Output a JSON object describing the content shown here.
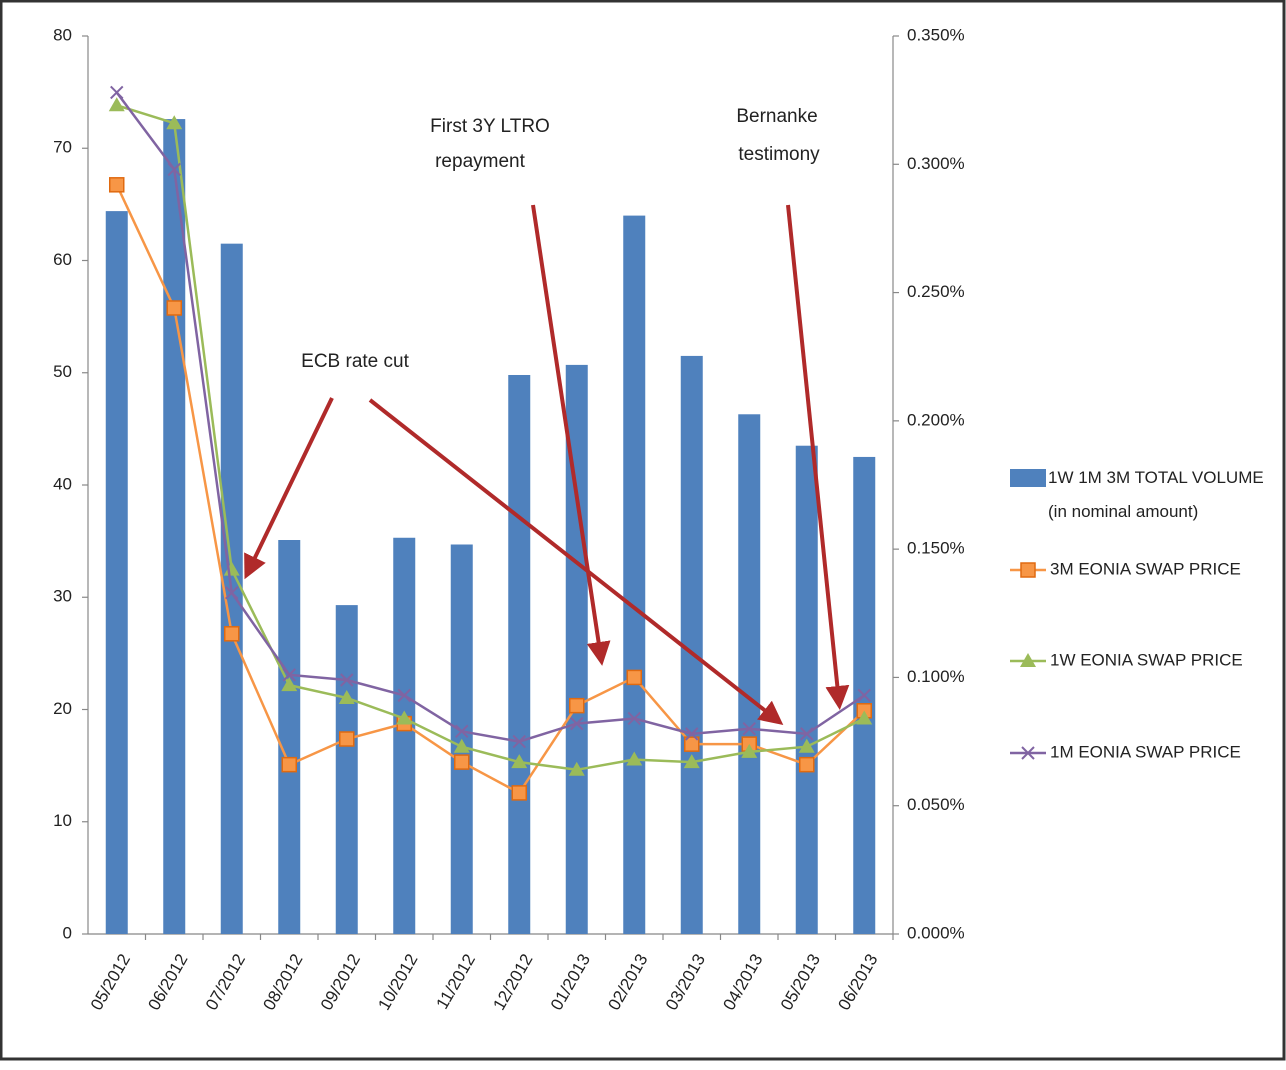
{
  "chart_data": {
    "type": "bar",
    "categories": [
      "05/2012",
      "06/2012",
      "07/2012",
      "08/2012",
      "09/2012",
      "10/2012",
      "11/2012",
      "12/2012",
      "01/2013",
      "02/2013",
      "03/2013",
      "04/2013",
      "05/2013",
      "06/2013"
    ],
    "series": [
      {
        "name": "1W 1M 3M TOTAL VOLUME (in nominal amount)",
        "type": "bar",
        "color": "#4f81bd",
        "values": [
          64.4,
          72.6,
          61.5,
          35.1,
          29.3,
          35.3,
          34.7,
          49.8,
          50.7,
          64.0,
          51.5,
          46.3,
          43.5,
          42.5
        ]
      },
      {
        "name": "3M EONIA SWAP PRICE",
        "type": "line",
        "axis": "y2",
        "marker": "square",
        "color": "#f79646",
        "values": [
          0.292,
          0.244,
          0.117,
          0.066,
          0.076,
          0.082,
          0.067,
          0.055,
          0.089,
          0.1,
          0.074,
          0.074,
          0.066,
          0.087
        ]
      },
      {
        "name": "1W EONIA SWAP PRICE",
        "type": "line",
        "axis": "y2",
        "marker": "triangle",
        "color": "#9bbb59",
        "values": [
          0.323,
          0.316,
          0.142,
          0.097,
          0.092,
          0.084,
          0.073,
          0.067,
          0.064,
          0.068,
          0.067,
          0.071,
          0.073,
          0.084
        ]
      },
      {
        "name": "1M EONIA SWAP PRICE",
        "type": "line",
        "axis": "y2",
        "marker": "cross",
        "color": "#8064a2",
        "values": [
          0.328,
          0.298,
          0.133,
          0.101,
          0.099,
          0.093,
          0.079,
          0.075,
          0.082,
          0.084,
          0.078,
          0.08,
          0.078,
          0.093
        ]
      }
    ],
    "ylim": [
      0,
      80
    ],
    "yticks": [
      0,
      10,
      20,
      30,
      40,
      50,
      60,
      70,
      80
    ],
    "y2lim": [
      0,
      0.35
    ],
    "y2ticks": [
      {
        "value": 0,
        "label": "0.000%"
      },
      {
        "value": 0.05,
        "label": "0.050%"
      },
      {
        "value": 0.1,
        "label": "0.100%"
      },
      {
        "value": 0.15,
        "label": "0.150%"
      },
      {
        "value": 0.2,
        "label": "0.200%"
      },
      {
        "value": 0.25,
        "label": "0.250%"
      },
      {
        "value": 0.3,
        "label": "0.300%"
      },
      {
        "value": 0.35,
        "label": "0.350%"
      }
    ],
    "annotations": [
      [
        "ECB rate cut"
      ],
      [
        "First 3Y LTRO",
        "repayment"
      ],
      [
        "Bernanke",
        "testimony"
      ]
    ]
  }
}
